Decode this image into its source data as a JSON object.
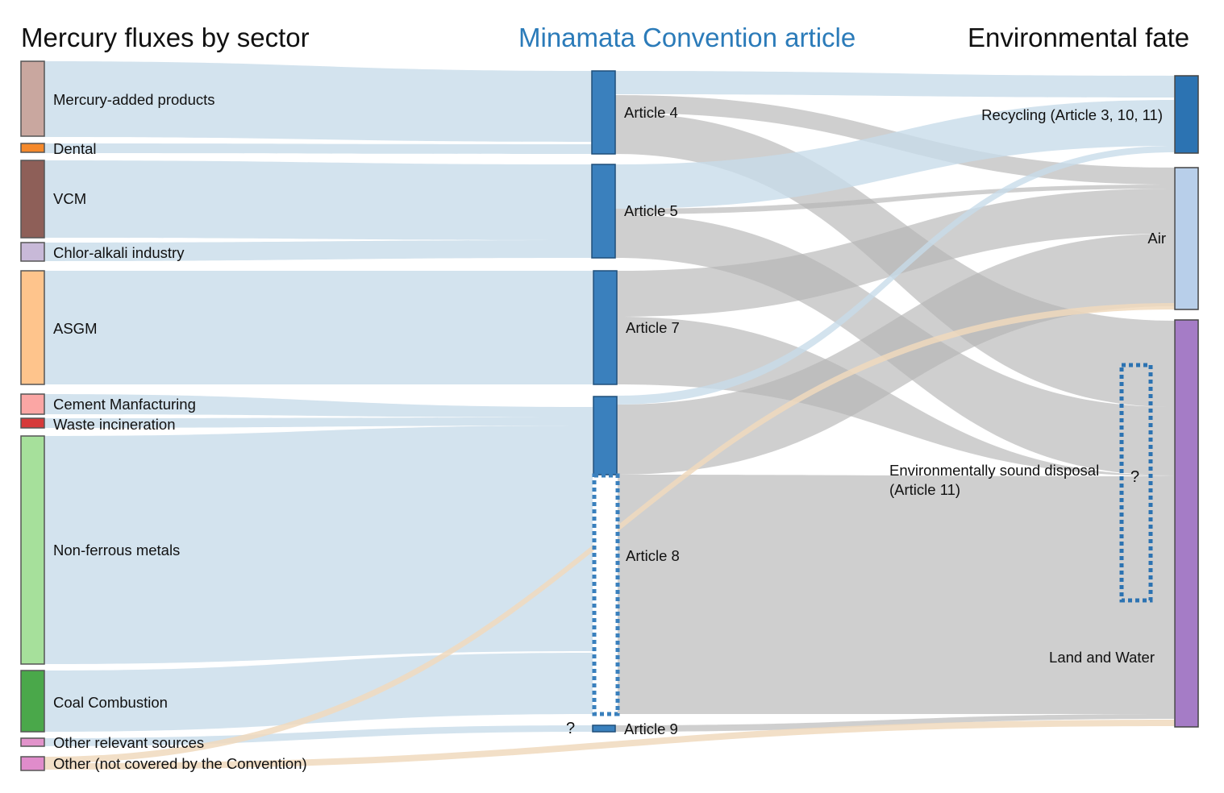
{
  "titles": {
    "sources": "Mercury fluxes by sector",
    "articles": "Minamata Convention article",
    "fate": "Environmental fate"
  },
  "colors": {
    "title_dark": "#111111",
    "title_blue": "#2b7bb9",
    "link_blue": "#c7dbe9",
    "link_gray": "#b5b5b5",
    "link_tan": "#f0d9bd",
    "article_node": "#3a80bd",
    "node_border": "#555555"
  },
  "sources": [
    {
      "id": "mercury-added-products",
      "label": "Mercury-added products",
      "color": "#c9a79f"
    },
    {
      "id": "dental",
      "label": "Dental",
      "color": "#f5892b"
    },
    {
      "id": "vcm",
      "label": "VCM",
      "color": "#8e5f58"
    },
    {
      "id": "chlor-alkali",
      "label": "Chlor-alkali industry",
      "color": "#c8b9d8"
    },
    {
      "id": "asgm",
      "label": "ASGM",
      "color": "#fec48c"
    },
    {
      "id": "cement",
      "label": "Cement Manfacturing",
      "color": "#fba6a4"
    },
    {
      "id": "waste-incineration",
      "label": "Waste incineration",
      "color": "#d63a3a"
    },
    {
      "id": "non-ferrous",
      "label": "Non-ferrous metals",
      "color": "#a6e09b"
    },
    {
      "id": "coal",
      "label": "Coal Combustion",
      "color": "#4aa84a"
    },
    {
      "id": "other-relevant",
      "label": "Other relevant sources",
      "color": "#e293cb"
    },
    {
      "id": "other-not-covered",
      "label": "Other (not covered by the Convention)",
      "color": "#e08ccb"
    }
  ],
  "articles": [
    {
      "id": "article-4",
      "label": "Article 4"
    },
    {
      "id": "article-5",
      "label": "Article 5"
    },
    {
      "id": "article-7",
      "label": "Article 7"
    },
    {
      "id": "article-8",
      "label": "Article 8"
    },
    {
      "id": "article-9",
      "label": "Article 9"
    }
  ],
  "fates": [
    {
      "id": "recycling",
      "label": "Recycling (Article 3, 10, 11)",
      "color": "#2c73b2"
    },
    {
      "id": "air",
      "label": "Air",
      "color": "#b8cfea"
    },
    {
      "id": "land-water",
      "label": "Land and Water",
      "color": "#a57cc6"
    }
  ],
  "disposal": {
    "label_line1": "Environmentally sound disposal",
    "label_line2": "(Article 11)",
    "unknown_mark": "?"
  },
  "article9_unknown_mark": "?",
  "flows": [
    {
      "from": "mercury-added-products",
      "to": "article-4",
      "kind": "blue"
    },
    {
      "from": "dental",
      "to": "article-4",
      "kind": "blue"
    },
    {
      "from": "vcm",
      "to": "article-5",
      "kind": "blue"
    },
    {
      "from": "chlor-alkali",
      "to": "article-5",
      "kind": "blue"
    },
    {
      "from": "asgm",
      "to": "article-7",
      "kind": "blue"
    },
    {
      "from": "cement",
      "to": "article-8",
      "kind": "blue"
    },
    {
      "from": "waste-incineration",
      "to": "article-8",
      "kind": "blue"
    },
    {
      "from": "non-ferrous",
      "to": "article-8",
      "kind": "blue"
    },
    {
      "from": "coal",
      "to": "article-8",
      "kind": "blue"
    },
    {
      "from": "other-relevant",
      "to": "article-9",
      "kind": "blue"
    },
    {
      "from": "other-not-covered",
      "to": "air",
      "kind": "tan"
    },
    {
      "from": "other-not-covered",
      "to": "land-water",
      "kind": "tan"
    },
    {
      "from": "article-4",
      "to": "recycling",
      "kind": "blue"
    },
    {
      "from": "article-4",
      "to": "air",
      "kind": "gray"
    },
    {
      "from": "article-4",
      "to": "land-water",
      "kind": "gray"
    },
    {
      "from": "article-5",
      "to": "recycling",
      "kind": "blue"
    },
    {
      "from": "article-5",
      "to": "air",
      "kind": "gray"
    },
    {
      "from": "article-5",
      "to": "land-water",
      "kind": "gray"
    },
    {
      "from": "article-7",
      "to": "air",
      "kind": "gray"
    },
    {
      "from": "article-7",
      "to": "land-water",
      "kind": "gray"
    },
    {
      "from": "article-8",
      "to": "recycling",
      "kind": "blue"
    },
    {
      "from": "article-8",
      "to": "air",
      "kind": "gray"
    },
    {
      "from": "article-8",
      "to": "land-water",
      "kind": "gray"
    },
    {
      "from": "article-9",
      "to": "land-water",
      "kind": "gray"
    }
  ]
}
